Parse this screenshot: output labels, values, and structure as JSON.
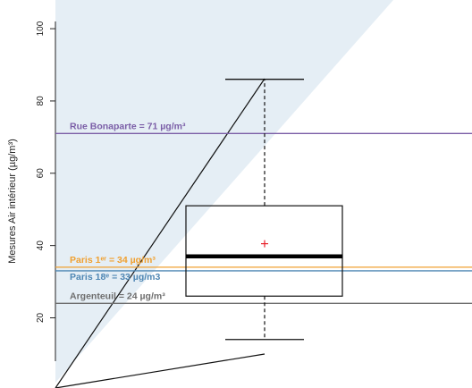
{
  "chart_data": {
    "type": "box",
    "ylabel": "Mesures Air intérieur (µg/m³)",
    "ylim": [
      8,
      102
    ],
    "yticks": [
      20,
      40,
      60,
      80,
      100
    ],
    "box": {
      "min": 14,
      "q1": 26,
      "median": 37,
      "q3": 51,
      "max": 86,
      "mean": 40.5
    },
    "reference_lines": [
      {
        "label": "Rue Bonaparte = 71 µg/m³",
        "value": 71,
        "color": "#7b5ea7"
      },
      {
        "label": "Paris 1ᵉʳ = 34 µg/m³",
        "value": 34,
        "color": "#f0a030"
      },
      {
        "label": "Paris 18ᵉ = 33 µg/m3",
        "value": 33,
        "color": "#4f87b4"
      },
      {
        "label": "Argenteuil = 24 µg/m³",
        "value": 24,
        "color": "#6e6e6e"
      }
    ],
    "mean_marker_color": "#e8202a"
  }
}
